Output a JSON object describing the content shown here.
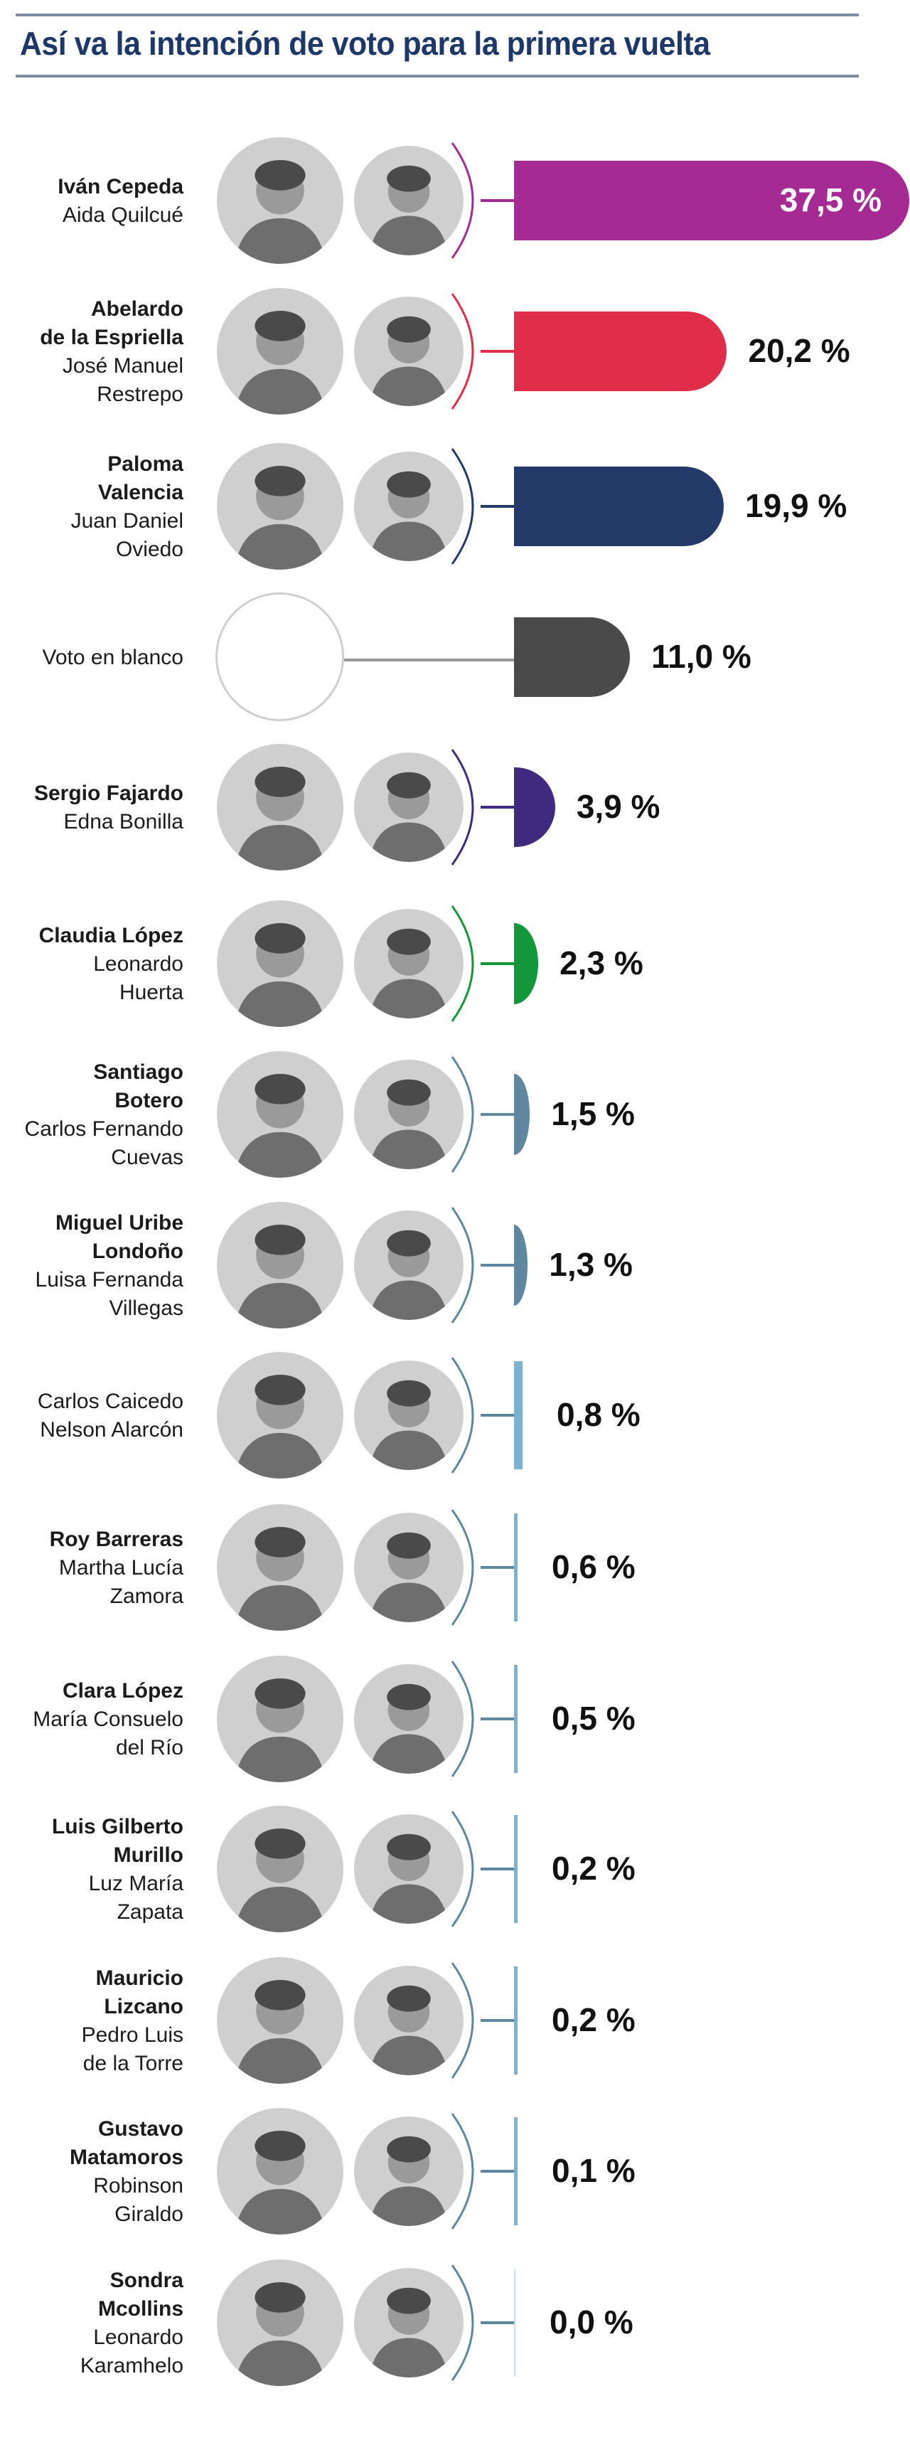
{
  "header": {
    "title": "Así va la intención de voto para la primera vuelta"
  },
  "colors": {
    "title": "#1d3769",
    "rule": "#7d8ba3",
    "photo_bg": "#cfcfcf"
  },
  "rows": [
    {
      "main": "Iván Cepeda",
      "vp": [
        "Aida Quilcué"
      ],
      "main_lines": [
        "Iván Cepeda"
      ],
      "pct": 37.5,
      "label": "37,5 %",
      "color": "#a62a94",
      "arc": "#a62a94",
      "blank": false,
      "main_bold": true
    },
    {
      "main": "Abelardo de la Espriella",
      "main_lines": [
        "Abelardo",
        "de la Espriella"
      ],
      "vp": [
        "José Manuel",
        "Restrepo"
      ],
      "pct": 20.2,
      "label": "20,2 %",
      "color": "#e02d4a",
      "arc": "#e02d4a",
      "blank": false,
      "main_bold": true
    },
    {
      "main": "Paloma Valencia",
      "main_lines": [
        "Paloma",
        "Valencia"
      ],
      "vp": [
        "Juan Daniel",
        "Oviedo"
      ],
      "pct": 19.9,
      "label": "19,9 %",
      "color": "#243b69",
      "arc": "#243b69",
      "blank": false,
      "main_bold": true
    },
    {
      "main": "Voto en blanco",
      "main_lines": [
        "Voto en blanco"
      ],
      "vp": [],
      "pct": 11.0,
      "label": "11,0 %",
      "color": "#4a4a4a",
      "arc": "#9a9a9a",
      "blank": true,
      "main_bold": false
    },
    {
      "main": "Sergio Fajardo",
      "main_lines": [
        "Sergio Fajardo"
      ],
      "vp": [
        "Edna Bonilla"
      ],
      "pct": 3.9,
      "label": "3,9 %",
      "color": "#3f2a80",
      "arc": "#3f2a80",
      "blank": false,
      "main_bold": true
    },
    {
      "main": "Claudia López",
      "main_lines": [
        "Claudia López"
      ],
      "vp": [
        "Leonardo",
        "Huerta"
      ],
      "pct": 2.3,
      "label": "2,3 %",
      "color": "#12973a",
      "arc": "#12973a",
      "blank": false,
      "main_bold": true
    },
    {
      "main": "Santiago Botero",
      "main_lines": [
        "Santiago",
        "Botero"
      ],
      "vp": [
        "Carlos Fernando",
        "Cuevas"
      ],
      "pct": 1.5,
      "label": "1,5 %",
      "color": "#5f87a0",
      "arc": "#5f87a0",
      "blank": false,
      "main_bold": true
    },
    {
      "main": "Miguel Uribe Londoño",
      "main_lines": [
        "Miguel Uribe",
        "Londoño"
      ],
      "vp": [
        "Luisa Fernanda",
        "Villegas"
      ],
      "pct": 1.3,
      "label": "1,3 %",
      "color": "#5f87a0",
      "arc": "#5f87a0",
      "blank": false,
      "main_bold": true
    },
    {
      "main": "Carlos Caicedo",
      "main_lines": [
        "Carlos Caicedo"
      ],
      "vp": [
        "Nelson Alarcón"
      ],
      "pct": 0.8,
      "label": "0,8 %",
      "color": "#7ab3d0",
      "arc": "#5f87a0",
      "blank": false,
      "main_bold": false
    },
    {
      "main": "Roy Barreras",
      "main_lines": [
        "Roy Barreras"
      ],
      "vp": [
        "Martha Lucía",
        "Zamora"
      ],
      "pct": 0.6,
      "label": "0,6 %",
      "color": "#7ab3d0",
      "arc": "#5f87a0",
      "blank": false,
      "main_bold": true
    },
    {
      "main": "Clara López",
      "main_lines": [
        "Clara López"
      ],
      "vp": [
        "María Consuelo",
        "del Río"
      ],
      "pct": 0.5,
      "label": "0,5 %",
      "color": "#7ab3d0",
      "arc": "#5f87a0",
      "blank": false,
      "main_bold": true
    },
    {
      "main": "Luis Gilberto Murillo",
      "main_lines": [
        "Luis Gilberto",
        "Murillo"
      ],
      "vp": [
        "Luz María",
        "Zapata"
      ],
      "pct": 0.2,
      "label": "0,2 %",
      "color": "#7ab3d0",
      "arc": "#5f87a0",
      "blank": false,
      "main_bold": true
    },
    {
      "main": "Mauricio Lizcano",
      "main_lines": [
        "Mauricio",
        "Lizcano"
      ],
      "vp": [
        "Pedro Luis",
        "de la Torre"
      ],
      "pct": 0.2,
      "label": "0,2 %",
      "color": "#7ab3d0",
      "arc": "#5f87a0",
      "blank": false,
      "main_bold": true
    },
    {
      "main": "Gustavo Matamoros",
      "main_lines": [
        "Gustavo",
        "Matamoros"
      ],
      "vp": [
        "Robinson",
        "Giraldo"
      ],
      "pct": 0.1,
      "label": "0,1 %",
      "color": "#7ab3d0",
      "arc": "#5f87a0",
      "blank": false,
      "main_bold": true
    },
    {
      "main": "Sondra Mcollins",
      "main_lines": [
        "Sondra",
        "Mcollins"
      ],
      "vp": [
        "Leonardo",
        "Karamhelo"
      ],
      "pct": 0.0,
      "label": "0,0 %",
      "color": "#c9dde8",
      "arc": "#5f87a0",
      "blank": false,
      "main_bold": true
    }
  ],
  "chart_data": {
    "type": "bar",
    "orientation": "horizontal",
    "title": "Así va la intención de voto para la primera vuelta",
    "xlabel": "",
    "ylabel": "",
    "unit": "%",
    "grid": false,
    "legend": null,
    "categories": [
      "Iván Cepeda / Aida Quilcué",
      "Abelardo de la Espriella / José Manuel Restrepo",
      "Paloma Valencia / Juan Daniel Oviedo",
      "Voto en blanco",
      "Sergio Fajardo / Edna Bonilla",
      "Claudia López / Leonardo Huerta",
      "Santiago Botero / Carlos Fernando Cuevas",
      "Miguel Uribe Londoño / Luisa Fernanda Villegas",
      "Carlos Caicedo / Nelson Alarcón",
      "Roy Barreras / Martha Lucía Zamora",
      "Clara López / María Consuelo del Río",
      "Luis Gilberto Murillo / Luz María Zapata",
      "Mauricio Lizcano / Pedro Luis de la Torre",
      "Gustavo Matamoros / Robinson Giraldo",
      "Sondra Mcollins / Leonardo Karamhelo"
    ],
    "values": [
      37.5,
      20.2,
      19.9,
      11.0,
      3.9,
      2.3,
      1.5,
      1.3,
      0.8,
      0.6,
      0.5,
      0.2,
      0.2,
      0.1,
      0.0
    ],
    "labels": [
      "37,5 %",
      "20,2 %",
      "19,9 %",
      "11,0 %",
      "3,9 %",
      "2,3 %",
      "1,5 %",
      "1,3 %",
      "0,8 %",
      "0,6 %",
      "0,5 %",
      "0,2 %",
      "0,2 %",
      "0,1 %",
      "0,0 %"
    ],
    "colors": [
      "#a62a94",
      "#e02d4a",
      "#243b69",
      "#4a4a4a",
      "#3f2a80",
      "#12973a",
      "#5f87a0",
      "#5f87a0",
      "#7ab3d0",
      "#7ab3d0",
      "#7ab3d0",
      "#7ab3d0",
      "#7ab3d0",
      "#7ab3d0",
      "#c9dde8"
    ],
    "xlim": [
      0,
      37.5
    ]
  }
}
